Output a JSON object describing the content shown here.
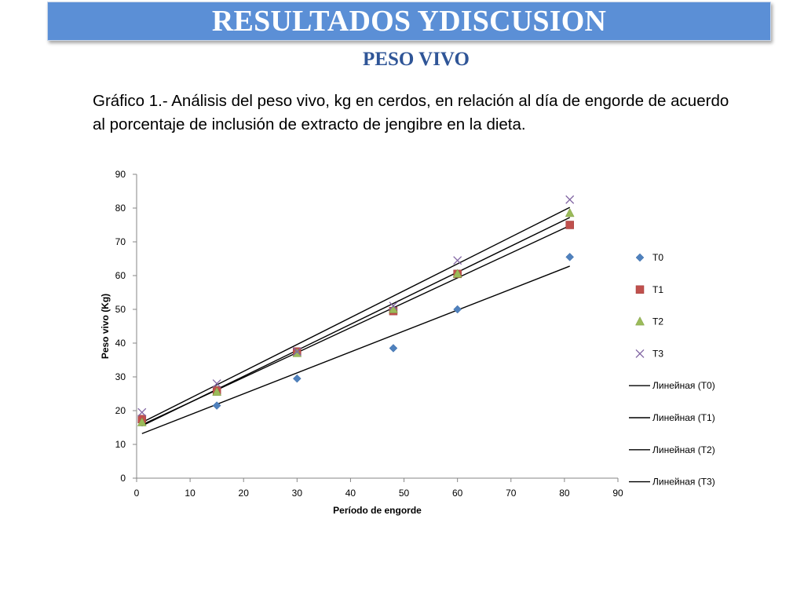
{
  "header": {
    "title": "RESULTADOS YDISCUSION",
    "subtitle": "PESO VIVO",
    "caption": "Gráfico 1.-  Análisis del peso vivo, kg en cerdos, en relación al día de engorde de acuerdo al porcentaje de inclusión de extracto de jengibre en la dieta."
  },
  "colors": {
    "banner": "#5b8fd6",
    "subtitle": "#2f5597",
    "T0": "#4f81bd",
    "T1": "#c0504d",
    "T2": "#9bbb59",
    "T3": "#8064a2",
    "trend": "#000000"
  },
  "chart_data": {
    "type": "scatter",
    "xlabel": "Período de engorde",
    "ylabel": "Peso vivo (Kg)",
    "xlim": [
      0,
      90
    ],
    "ylim": [
      0,
      90
    ],
    "xticks": [
      0,
      10,
      20,
      30,
      40,
      50,
      60,
      70,
      80,
      90
    ],
    "yticks": [
      0,
      10,
      20,
      30,
      40,
      50,
      60,
      70,
      80,
      90
    ],
    "grid": false,
    "legend_position": "right",
    "x": [
      1,
      15,
      30,
      48,
      60,
      81
    ],
    "series": [
      {
        "name": "T0",
        "marker": "diamond",
        "values": [
          16.5,
          21.5,
          29.5,
          38.5,
          50.0,
          65.5
        ]
      },
      {
        "name": "T1",
        "marker": "square",
        "values": [
          17.5,
          26.0,
          37.5,
          49.5,
          60.5,
          75.0
        ]
      },
      {
        "name": "T2",
        "marker": "triangle",
        "values": [
          16.5,
          25.5,
          37.0,
          50.0,
          60.5,
          78.5
        ]
      },
      {
        "name": "T3",
        "marker": "x",
        "values": [
          19.5,
          28.0,
          37.5,
          51.0,
          64.5,
          82.5
        ]
      }
    ],
    "trendlines": [
      {
        "name": "Линейная (T0)",
        "x": [
          1,
          81
        ],
        "y": [
          13.2,
          62.8
        ]
      },
      {
        "name": "Линейная (T1)",
        "x": [
          1,
          81
        ],
        "y": [
          15.8,
          74.8
        ]
      },
      {
        "name": "Линейная (T2)",
        "x": [
          1,
          81
        ],
        "y": [
          15.5,
          77.2
        ]
      },
      {
        "name": "Линейная (T3)",
        "x": [
          1,
          81
        ],
        "y": [
          16.5,
          80.2
        ]
      }
    ]
  }
}
